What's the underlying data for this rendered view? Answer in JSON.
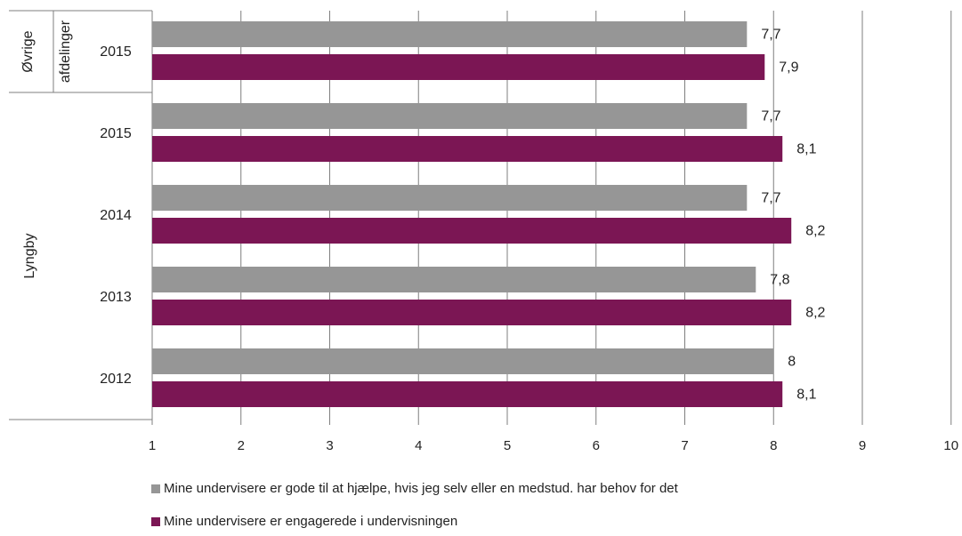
{
  "chart_data": {
    "type": "bar",
    "orientation": "horizontal",
    "xlim": [
      1,
      10
    ],
    "x_ticks": [
      "1",
      "2",
      "3",
      "4",
      "5",
      "6",
      "7",
      "8",
      "9",
      "10"
    ],
    "groups": [
      {
        "name": "Øvrige afdelinger",
        "rows": [
          "2015"
        ]
      },
      {
        "name": "Lyngby",
        "rows": [
          "2015",
          "2014",
          "2013",
          "2012"
        ]
      }
    ],
    "series": [
      {
        "name": "Mine undervisere er gode til at hjælpe, hvis jeg selv eller en medstud. har behov for det",
        "color": "#969696",
        "values": [
          7.7,
          7.7,
          7.7,
          7.8,
          8.0
        ],
        "labels": [
          "7,7",
          "7,7",
          "7,7",
          "7,8",
          "8"
        ]
      },
      {
        "name": "Mine undervisere er engagerede i undervisningen",
        "color": "#7b1654",
        "values": [
          7.9,
          8.1,
          8.2,
          8.2,
          8.1
        ],
        "labels": [
          "7,9",
          "8,1",
          "8,2",
          "8,2",
          "8,1"
        ]
      }
    ],
    "grid": true,
    "legend_position": "bottom"
  }
}
